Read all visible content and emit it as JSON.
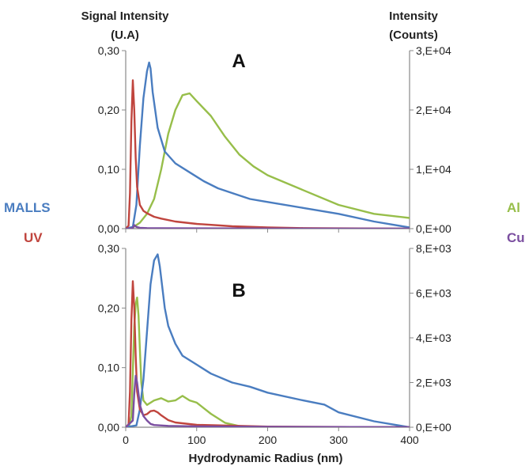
{
  "colors": {
    "malls": "#4a7dc0",
    "uv": "#c0453e",
    "al": "#97be4a",
    "cu": "#7b4fa0",
    "axis": "#888888"
  },
  "labels": {
    "left_title_1": "Signal Intensity",
    "left_title_2": "(U.A)",
    "right_title_1": "Intensity",
    "right_title_2": "(Counts)",
    "xlabel": "Hydrodynamic Radius (nm)",
    "panel_a": "A",
    "panel_b": "B",
    "legend_malls": "MALLS",
    "legend_uv": "UV",
    "legend_al": "Al",
    "legend_cu": "Cu"
  },
  "chart_data": [
    {
      "panel": "A",
      "type": "line",
      "xlabel": "",
      "ylabel": "Signal Intensity (U.A)",
      "y2label": "Intensity (Counts)",
      "xlim": [
        0,
        400
      ],
      "ylim": [
        0,
        0.3
      ],
      "y2lim": [
        0,
        30000
      ],
      "yticks": [
        "0,00",
        "0,10",
        "0,20",
        "0,30"
      ],
      "y2ticks": [
        "0,E+00",
        "1,E+04",
        "2,E+04",
        "3,E+04"
      ],
      "series": [
        {
          "name": "UV",
          "axis": "left",
          "color_key": "uv",
          "x": [
            0,
            4,
            6,
            8,
            10,
            12,
            14,
            16,
            20,
            25,
            30,
            40,
            50,
            70,
            100,
            150,
            200,
            250,
            300,
            400
          ],
          "y": [
            0,
            0.005,
            0.06,
            0.18,
            0.25,
            0.2,
            0.12,
            0.07,
            0.04,
            0.03,
            0.026,
            0.02,
            0.017,
            0.012,
            0.008,
            0.004,
            0.002,
            0.001,
            0.0005,
            0
          ]
        },
        {
          "name": "MALLS",
          "axis": "left",
          "color_key": "malls",
          "x": [
            0,
            10,
            15,
            20,
            25,
            30,
            33,
            35,
            38,
            45,
            55,
            70,
            90,
            110,
            130,
            150,
            175,
            200,
            250,
            300,
            350,
            400
          ],
          "y": [
            0,
            0.003,
            0.04,
            0.14,
            0.22,
            0.265,
            0.28,
            0.27,
            0.23,
            0.17,
            0.13,
            0.11,
            0.095,
            0.08,
            0.068,
            0.06,
            0.05,
            0.045,
            0.035,
            0.025,
            0.012,
            0.002
          ]
        },
        {
          "name": "Al",
          "axis": "right",
          "color_key": "al",
          "x": [
            0,
            10,
            20,
            30,
            40,
            50,
            60,
            70,
            80,
            90,
            100,
            120,
            140,
            160,
            180,
            200,
            250,
            300,
            350,
            400
          ],
          "y": [
            0,
            200,
            1000,
            2500,
            5000,
            10000,
            16000,
            20000,
            22500,
            22800,
            21500,
            19000,
            15500,
            12500,
            10500,
            9000,
            6500,
            4000,
            2500,
            1800
          ]
        },
        {
          "name": "Cu",
          "axis": "right",
          "color_key": "cu",
          "x": [
            0,
            10,
            12,
            15,
            20,
            30,
            50,
            100,
            200,
            400
          ],
          "y": [
            0,
            100,
            600,
            300,
            150,
            100,
            80,
            50,
            30,
            10
          ]
        }
      ]
    },
    {
      "panel": "B",
      "type": "line",
      "xlabel": "Hydrodynamic Radius (nm)",
      "ylabel": "",
      "y2label": "",
      "xlim": [
        0,
        400
      ],
      "ylim": [
        0,
        0.3
      ],
      "y2lim": [
        0,
        8000
      ],
      "xticks": [
        "0",
        "100",
        "200",
        "300",
        "400"
      ],
      "yticks": [
        "0,00",
        "0,10",
        "0,20",
        "0,30"
      ],
      "y2ticks": [
        "0,E+00",
        "2,E+03",
        "4,E+03",
        "6,E+03",
        "8,E+03"
      ],
      "series": [
        {
          "name": "UV",
          "axis": "left",
          "color_key": "uv",
          "x": [
            0,
            4,
            6,
            8,
            10,
            12,
            14,
            16,
            20,
            25,
            30,
            35,
            40,
            45,
            50,
            60,
            70,
            100,
            200,
            400
          ],
          "y": [
            0,
            0.005,
            0.06,
            0.18,
            0.245,
            0.2,
            0.12,
            0.06,
            0.03,
            0.02,
            0.022,
            0.027,
            0.028,
            0.025,
            0.02,
            0.012,
            0.008,
            0.004,
            0.001,
            0
          ]
        },
        {
          "name": "MALLS",
          "axis": "left",
          "color_key": "malls",
          "x": [
            0,
            15,
            20,
            25,
            30,
            35,
            40,
            45,
            48,
            52,
            55,
            60,
            70,
            80,
            100,
            120,
            150,
            175,
            200,
            250,
            280,
            300,
            350,
            400
          ],
          "y": [
            0,
            0.003,
            0.03,
            0.08,
            0.16,
            0.24,
            0.28,
            0.29,
            0.27,
            0.23,
            0.2,
            0.17,
            0.14,
            0.12,
            0.105,
            0.09,
            0.075,
            0.068,
            0.058,
            0.045,
            0.038,
            0.025,
            0.01,
            0
          ]
        },
        {
          "name": "Al",
          "axis": "right",
          "color_key": "al",
          "x": [
            0,
            5,
            8,
            10,
            12,
            14,
            16,
            18,
            20,
            22,
            25,
            30,
            40,
            50,
            60,
            70,
            80,
            90,
            100,
            120,
            140,
            160,
            200,
            400
          ],
          "y": [
            0,
            100,
            500,
            2500,
            4500,
            5500,
            5800,
            5000,
            3500,
            2000,
            1200,
            1000,
            1200,
            1300,
            1150,
            1200,
            1400,
            1200,
            1100,
            600,
            200,
            50,
            10,
            0
          ]
        },
        {
          "name": "Cu",
          "axis": "right",
          "color_key": "cu",
          "x": [
            0,
            10,
            12,
            14,
            16,
            18,
            20,
            25,
            30,
            35,
            40,
            60,
            100,
            200,
            400
          ],
          "y": [
            0,
            300,
            1500,
            2300,
            2000,
            1500,
            1000,
            500,
            300,
            150,
            100,
            60,
            40,
            20,
            5
          ]
        }
      ]
    }
  ]
}
